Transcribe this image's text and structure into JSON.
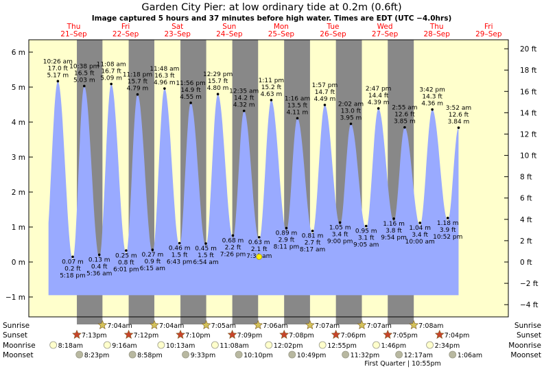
{
  "title": "Garden City Pier: at low  ordinary tide at 0.2m (0.6ft)",
  "subtitle": "Image captured 5 hours and 37 minutes before high water. Times are EDT (UTC −4.0hrs)",
  "colors": {
    "day_bg": "#ffffcc",
    "night_bg": "#888888",
    "tide_fill": "#99aaff",
    "day_label": "#ff0000",
    "sunrise_star": "#d4c25a",
    "sunset_star": "#c8442a",
    "moon_visible": "#ffffcc",
    "moon_set": "#b8b8a0"
  },
  "chart_data": {
    "type": "area",
    "y_left_unit": "m",
    "y_left_ticks": [
      "6 m",
      "5 m",
      "4 m",
      "3 m",
      "2 m",
      "1 m",
      "0 m",
      "−1 m"
    ],
    "y_left_values": [
      6,
      5,
      4,
      3,
      2,
      1,
      0,
      -1
    ],
    "ylim_m": [
      -1.5,
      6.35
    ],
    "y_right_unit": "ft",
    "y_right_ticks": [
      "20 ft",
      "18 ft",
      "16 ft",
      "14 ft",
      "12 ft",
      "10 ft",
      "8 ft",
      "6 ft",
      "4 ft",
      "2 ft",
      "0 ft",
      "−2 ft",
      "−4 ft"
    ],
    "y_right_values": [
      20,
      18,
      16,
      14,
      12,
      10,
      8,
      6,
      4,
      2,
      0,
      -2,
      -4
    ],
    "day_labels": [
      {
        "dow": "Thu",
        "date": "21–Sep",
        "day": 0
      },
      {
        "dow": "Fri",
        "date": "22–Sep",
        "day": 1
      },
      {
        "dow": "Sat",
        "date": "23–Sep",
        "day": 2
      },
      {
        "dow": "Sun",
        "date": "24–Sep",
        "day": 3
      },
      {
        "dow": "Mon",
        "date": "25–Sep",
        "day": 4
      },
      {
        "dow": "Tue",
        "date": "26–Sep",
        "day": 5
      },
      {
        "dow": "Wed",
        "date": "27–Sep",
        "day": 6
      },
      {
        "dow": "Thu",
        "date": "28–Sep",
        "day": 7
      },
      {
        "dow": "Fri",
        "date": "29–Sep",
        "day": 8
      }
    ],
    "nights": [
      {
        "start": "2023-09-21 19:13",
        "end": "2023-09-22 07:04"
      },
      {
        "start": "2023-09-22 19:12",
        "end": "2023-09-23 07:04"
      },
      {
        "start": "2023-09-23 19:10",
        "end": "2023-09-24 07:05"
      },
      {
        "start": "2023-09-24 19:09",
        "end": "2023-09-25 07:06"
      },
      {
        "start": "2023-09-25 19:08",
        "end": "2023-09-26 07:07"
      },
      {
        "start": "2023-09-26 19:06",
        "end": "2023-09-27 07:07"
      },
      {
        "start": "2023-09-27 19:05",
        "end": "2023-09-28 07:08"
      }
    ],
    "high_tides": [
      {
        "time": "10:26 am",
        "ft": "17.0 ft",
        "m": 5.17,
        "day": 0,
        "hour": 10.43
      },
      {
        "time": "10:38 pm",
        "ft": "16.5 ft",
        "m": 5.03,
        "day": 0,
        "hour": 22.63
      },
      {
        "time": "11:08 am",
        "ft": "16.7 ft",
        "m": 5.09,
        "day": 1,
        "hour": 11.13
      },
      {
        "time": "11:18 pm",
        "ft": "15.7 ft",
        "m": 4.79,
        "day": 1,
        "hour": 23.3
      },
      {
        "time": "11:48 am",
        "ft": "16.3 ft",
        "m": 4.96,
        "day": 2,
        "hour": 11.8
      },
      {
        "time": "11:56 pm",
        "ft": "14.9 ft",
        "m": 4.55,
        "day": 2,
        "hour": 23.93
      },
      {
        "time": "12:29 pm",
        "ft": "15.7 ft",
        "m": 4.8,
        "day": 3,
        "hour": 12.48
      },
      {
        "time": "12:35 am",
        "ft": "14.2 ft",
        "m": 4.32,
        "day": 4,
        "hour": 0.58
      },
      {
        "time": "1:11 pm",
        "ft": "15.2 ft",
        "m": 4.63,
        "day": 4,
        "hour": 13.18
      },
      {
        "time": "1:16 am",
        "ft": "13.5 ft",
        "m": 4.11,
        "day": 5,
        "hour": 1.27
      },
      {
        "time": "1:57 pm",
        "ft": "14.7 ft",
        "m": 4.49,
        "day": 5,
        "hour": 13.95
      },
      {
        "time": "2:02 am",
        "ft": "13.0 ft",
        "m": 3.95,
        "day": 6,
        "hour": 2.03
      },
      {
        "time": "2:47 pm",
        "ft": "14.4 ft",
        "m": 4.39,
        "day": 6,
        "hour": 14.78
      },
      {
        "time": "2:55 am",
        "ft": "12.6 ft",
        "m": 3.85,
        "day": 7,
        "hour": 2.92
      },
      {
        "time": "3:42 pm",
        "ft": "14.3 ft",
        "m": 4.36,
        "day": 7,
        "hour": 15.7
      },
      {
        "time": "3:52 am",
        "ft": "12.6 ft",
        "m": 3.84,
        "day": 8,
        "hour": 3.87
      }
    ],
    "low_tides": [
      {
        "time": "5:18 pm",
        "ft": "0.2 ft",
        "m": 0.07,
        "day": 0,
        "hour": 17.3
      },
      {
        "time": "5:36 am",
        "ft": "0.4 ft",
        "m": 0.13,
        "day": 1,
        "hour": 5.6
      },
      {
        "time": "6:01 pm",
        "ft": "0.8 ft",
        "m": 0.25,
        "day": 1,
        "hour": 18.02
      },
      {
        "time": "6:15 am",
        "ft": "0.9 ft",
        "m": 0.27,
        "day": 2,
        "hour": 6.25
      },
      {
        "time": "6:43 pm",
        "ft": "1.5 ft",
        "m": 0.46,
        "day": 2,
        "hour": 18.72
      },
      {
        "time": "6:54 am",
        "ft": "1.5 ft",
        "m": 0.45,
        "day": 3,
        "hour": 6.9
      },
      {
        "time": "7:26 pm",
        "ft": "2.2 ft",
        "m": 0.68,
        "day": 3,
        "hour": 19.43
      },
      {
        "time": "7:34 am",
        "ft": "2.1 ft",
        "m": 0.63,
        "day": 4,
        "hour": 7.57
      },
      {
        "time": "8:11 pm",
        "ft": "2.9 ft",
        "m": 0.89,
        "day": 4,
        "hour": 20.18
      },
      {
        "time": "8:17 am",
        "ft": "2.7 ft",
        "m": 0.81,
        "day": 5,
        "hour": 8.28
      },
      {
        "time": "9:00 pm",
        "ft": "3.4 ft",
        "m": 1.05,
        "day": 5,
        "hour": 21.0
      },
      {
        "time": "9:05 am",
        "ft": "3.1 ft",
        "m": 0.95,
        "day": 6,
        "hour": 9.08
      },
      {
        "time": "9:54 pm",
        "ft": "3.8 ft",
        "m": 1.16,
        "day": 6,
        "hour": 21.9
      },
      {
        "time": "10:00 am",
        "ft": "3.4 ft",
        "m": 1.04,
        "day": 7,
        "hour": 10.0
      },
      {
        "time": "10:52 pm",
        "ft": "3.9 ft",
        "m": 1.18,
        "day": 7,
        "hour": 22.87
      }
    ],
    "sunrise": [
      {
        "time": "7:04am",
        "day": 1
      },
      {
        "time": "7:04am",
        "day": 2
      },
      {
        "time": "7:05am",
        "day": 3
      },
      {
        "time": "7:06am",
        "day": 4
      },
      {
        "time": "7:07am",
        "day": 5
      },
      {
        "time": "7:07am",
        "day": 6
      },
      {
        "time": "7:08am",
        "day": 7
      }
    ],
    "sunset": [
      {
        "time": "7:13pm",
        "day": 0
      },
      {
        "time": "7:12pm",
        "day": 1
      },
      {
        "time": "7:10pm",
        "day": 2
      },
      {
        "time": "7:09pm",
        "day": 3
      },
      {
        "time": "7:08pm",
        "day": 4
      },
      {
        "time": "7:06pm",
        "day": 5
      },
      {
        "time": "7:05pm",
        "day": 6
      },
      {
        "time": "7:04pm",
        "day": 7
      }
    ],
    "moonrise": [
      {
        "time": "8:18am",
        "day": 0
      },
      {
        "time": "9:16am",
        "day": 1
      },
      {
        "time": "10:13am",
        "day": 2
      },
      {
        "time": "11:08am",
        "day": 3
      },
      {
        "time": "12:02pm",
        "day": 4
      },
      {
        "time": "12:55pm",
        "day": 5
      },
      {
        "time": "1:46pm",
        "day": 6
      },
      {
        "time": "2:34pm",
        "day": 7
      }
    ],
    "moonset": [
      {
        "time": "8:23pm",
        "day": 0
      },
      {
        "time": "8:58pm",
        "day": 1
      },
      {
        "time": "9:33pm",
        "day": 2
      },
      {
        "time": "10:10pm",
        "day": 3
      },
      {
        "time": "10:49pm",
        "day": 4
      },
      {
        "time": "11:32pm",
        "day": 5
      },
      {
        "time": "12:17am",
        "day": 7
      },
      {
        "time": "1:06am",
        "day": 8
      }
    ],
    "moon_phase_note": "First Quarter | 10:55pm",
    "row_labels": {
      "sunrise": "Sunrise",
      "sunset": "Sunset",
      "moonrise": "Moonrise",
      "moonset": "Moonset"
    },
    "current_marker_m": 0.15
  }
}
